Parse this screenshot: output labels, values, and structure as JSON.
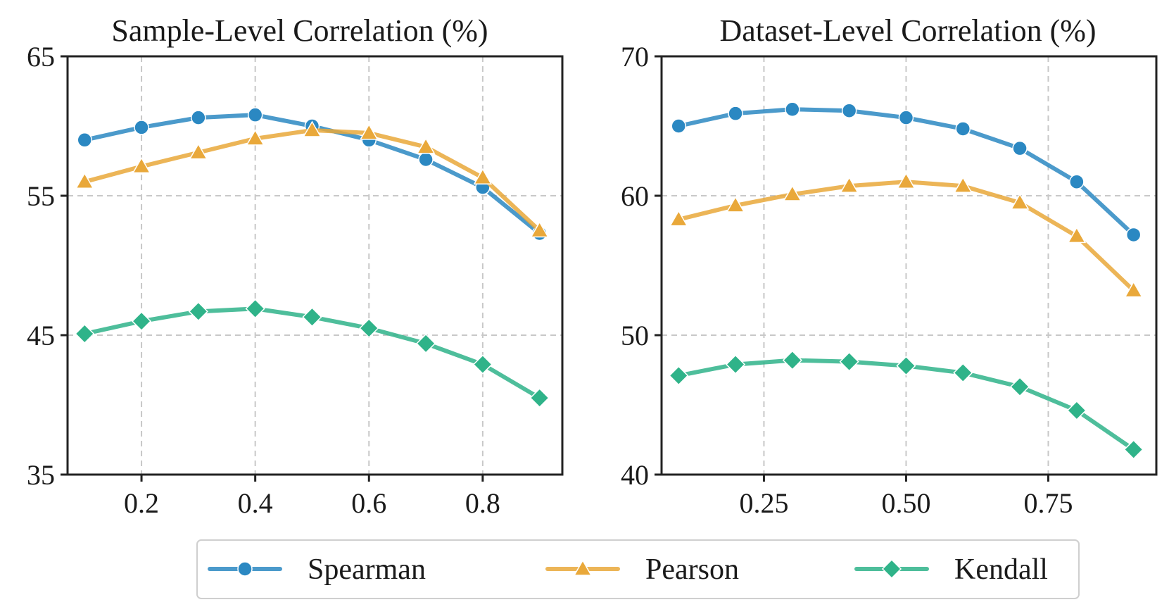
{
  "chart_data": [
    {
      "type": "line",
      "title": "Sample-Level Correlation (%)",
      "x": [
        0.1,
        0.2,
        0.3,
        0.4,
        0.5,
        0.6,
        0.7,
        0.8,
        0.9
      ],
      "xlim": [
        0.07,
        0.94
      ],
      "ylim": [
        35,
        65
      ],
      "xticks": [
        0.2,
        0.4,
        0.6,
        0.8
      ],
      "xtick_labels": [
        "0.2",
        "0.4",
        "0.6",
        "0.8"
      ],
      "yticks": [
        35,
        45,
        55,
        65
      ],
      "ytick_labels": [
        "35",
        "45",
        "55",
        "65"
      ],
      "grid": true,
      "series": [
        {
          "name": "Spearman",
          "values": [
            59.0,
            59.9,
            60.6,
            60.8,
            60.0,
            59.0,
            57.6,
            55.6,
            52.3
          ]
        },
        {
          "name": "Pearson",
          "values": [
            56.0,
            57.1,
            58.1,
            59.1,
            59.7,
            59.5,
            58.5,
            56.3,
            52.5
          ]
        },
        {
          "name": "Kendall",
          "values": [
            45.1,
            46.0,
            46.7,
            46.9,
            46.3,
            45.5,
            44.4,
            42.9,
            40.5
          ]
        }
      ]
    },
    {
      "type": "line",
      "title": "Dataset-Level Correlation (%)",
      "x": [
        0.1,
        0.2,
        0.3,
        0.4,
        0.5,
        0.6,
        0.7,
        0.8,
        0.9
      ],
      "xlim": [
        0.07,
        0.94
      ],
      "ylim": [
        40,
        70
      ],
      "xticks": [
        0.25,
        0.5,
        0.75
      ],
      "xtick_labels": [
        "0.25",
        "0.50",
        "0.75"
      ],
      "yticks": [
        40,
        50,
        60,
        70
      ],
      "ytick_labels": [
        "40",
        "50",
        "60",
        "70"
      ],
      "grid": true,
      "series": [
        {
          "name": "Spearman",
          "values": [
            65.0,
            65.9,
            66.2,
            66.1,
            65.6,
            64.8,
            63.4,
            61.0,
            57.2
          ]
        },
        {
          "name": "Pearson",
          "values": [
            58.3,
            59.3,
            60.1,
            60.7,
            61.0,
            60.7,
            59.5,
            57.1,
            53.2
          ]
        },
        {
          "name": "Kendall",
          "values": [
            47.1,
            47.9,
            48.2,
            48.1,
            47.8,
            47.3,
            46.3,
            44.6,
            41.8
          ]
        }
      ]
    }
  ],
  "legend": {
    "placement": "bottom-center",
    "items": [
      {
        "label": "Spearman",
        "marker": "circle",
        "color": "#2b88c2"
      },
      {
        "label": "Pearson",
        "marker": "triangle",
        "color": "#e9a83a"
      },
      {
        "label": "Kendall",
        "marker": "diamond",
        "color": "#2fb389"
      }
    ]
  },
  "colors": {
    "Spearman": "#2b88c2",
    "Pearson": "#e9a83a",
    "Kendall": "#2fb389"
  }
}
